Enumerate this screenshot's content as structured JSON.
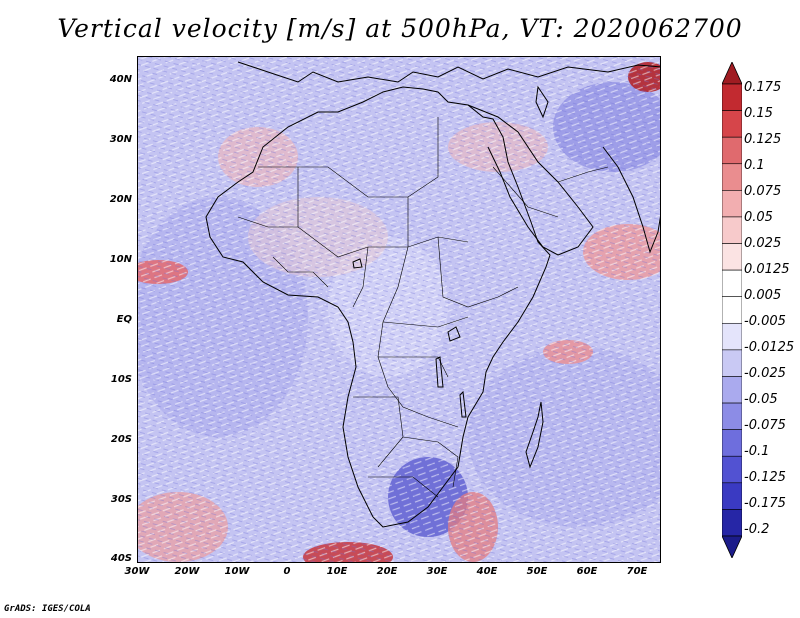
{
  "title": "Vertical velocity [m/s] at 500hPa, VT: 2020062700",
  "credit": "GrADS: IGES/COLA",
  "map": {
    "lat_ticks": [
      "40N",
      "30N",
      "20N",
      "10N",
      "EQ",
      "10S",
      "20S",
      "30S",
      "40S"
    ],
    "lon_ticks": [
      "30W",
      "20W",
      "10W",
      "0",
      "10E",
      "20E",
      "30E",
      "40E",
      "50E",
      "60E",
      "70E"
    ],
    "lat_range": [
      -40,
      44
    ],
    "lon_range": [
      -30,
      75
    ],
    "field": "vertical velocity at 500hPa"
  },
  "colorbar": {
    "labels": [
      "0.175",
      "0.15",
      "0.125",
      "0.1",
      "0.075",
      "0.05",
      "0.025",
      "0.0125",
      "0.005",
      "-0.005",
      "-0.0125",
      "-0.025",
      "-0.05",
      "-0.075",
      "-0.1",
      "-0.125",
      "-0.175",
      "-0.2"
    ],
    "colors": [
      "#a01c22",
      "#c22a30",
      "#d6454a",
      "#e06a6e",
      "#ea8d8f",
      "#f2aeb0",
      "#f7cacb",
      "#fbe3e3",
      "#ffffff",
      "#ffffff",
      "#e4e4fb",
      "#c9c9f4",
      "#aaaaee",
      "#8c8ce6",
      "#6e6edd",
      "#5252d2",
      "#3a3ac2",
      "#2626a6",
      "#1c1c8a"
    ]
  }
}
